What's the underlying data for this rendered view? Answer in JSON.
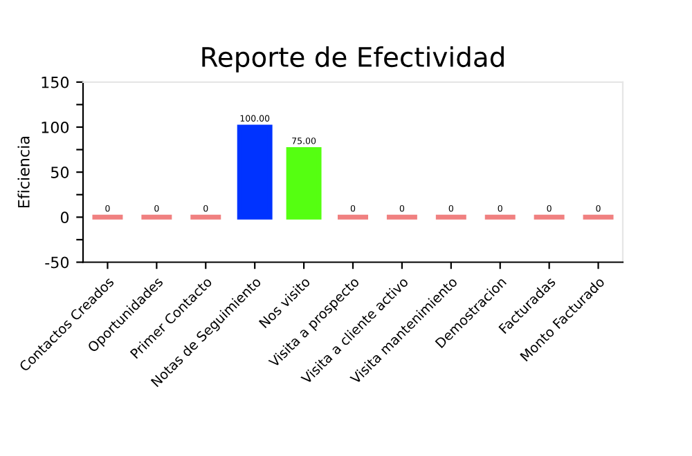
{
  "chart_data": {
    "type": "bar",
    "title": "Reporte de Efectividad",
    "ylabel": "Eficiencia",
    "categories": [
      "Contactos Creados",
      "Oportunidades",
      "Primer Contacto",
      "Notas de Seguimiento",
      "Nos visito",
      "Visita a prospecto",
      "Visita a cliente activo",
      "Visita mantenimiento",
      "Demostracion",
      "Facturadas",
      "Monto Facturado"
    ],
    "values": [
      0,
      0,
      0,
      100,
      75,
      0,
      0,
      0,
      0,
      0,
      0
    ],
    "colors": [
      "#f08080",
      "#f08080",
      "#f08080",
      "#0033ff",
      "#55ff11",
      "#f08080",
      "#f08080",
      "#f08080",
      "#f08080",
      "#f08080",
      "#f08080"
    ],
    "value_labels": [
      "0",
      "0",
      "0",
      "100.00",
      "75.00",
      "0",
      "0",
      "0",
      "0",
      "0",
      "0"
    ],
    "ylim": [
      -50,
      150
    ],
    "yticks": [
      -50,
      {
        "value": -25,
        "label": null
      },
      0,
      {
        "value": 25,
        "label": null
      },
      50,
      {
        "value": 75,
        "label": null
      },
      100,
      {
        "value": 125,
        "label": null
      },
      150
    ],
    "grid": false,
    "legend": false
  }
}
